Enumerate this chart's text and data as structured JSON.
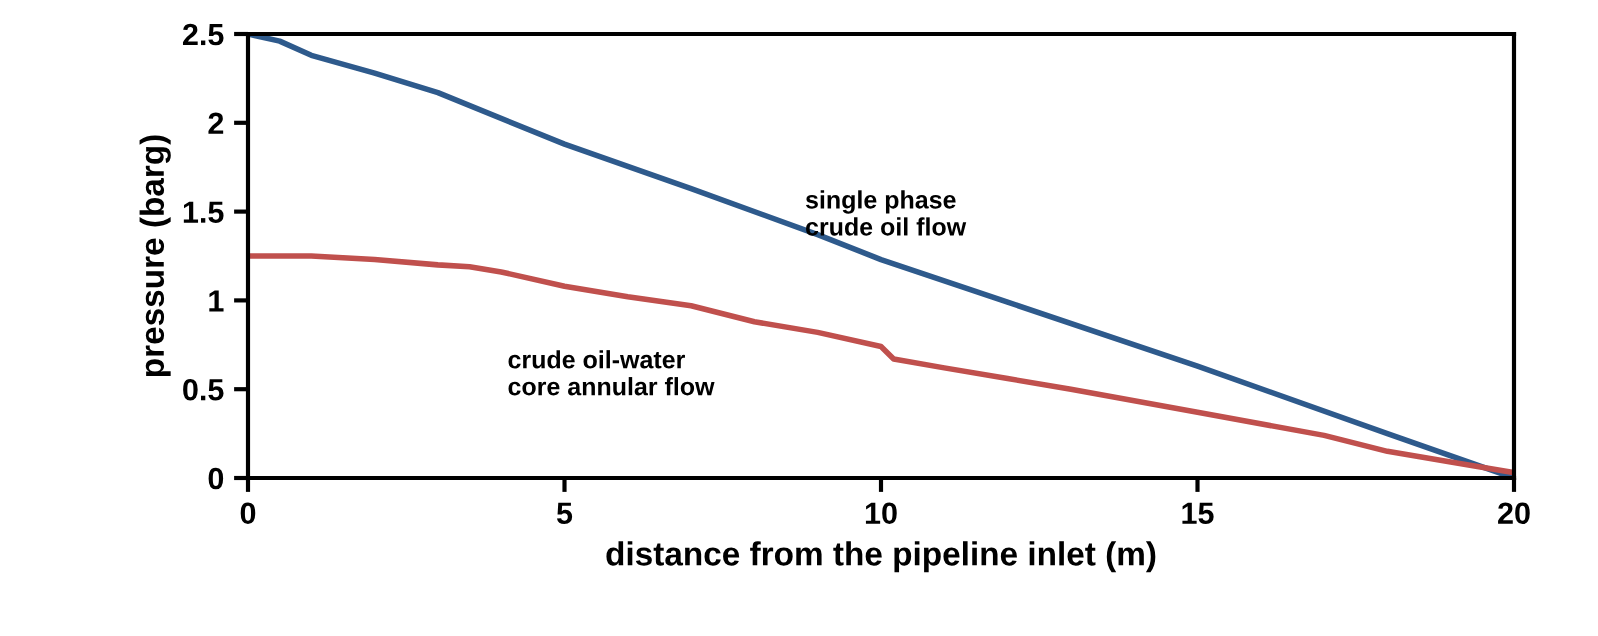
{
  "chart_data": {
    "type": "line",
    "xlabel": "distance from the pipeline inlet (m)",
    "ylabel": "pressure (barg)",
    "xlim": [
      0,
      20
    ],
    "xticks": [
      0,
      5,
      10,
      15,
      20
    ],
    "ylim": [
      0,
      2.5
    ],
    "yticks": [
      0,
      0.5,
      1,
      1.5,
      2,
      2.5
    ],
    "grid": false,
    "legend": false,
    "marker": "none",
    "line_style": "solid",
    "series": [
      {
        "color": "#2e5a8c",
        "x": [
          0,
          0.5,
          1,
          2,
          3,
          5,
          7,
          9,
          10,
          12,
          15,
          18,
          20
        ],
        "values": [
          2.5,
          2.46,
          2.38,
          2.28,
          2.17,
          1.88,
          1.63,
          1.37,
          1.23,
          0.99,
          0.63,
          0.25,
          0.0
        ]
      },
      {
        "color": "#c0504d",
        "x": [
          0,
          1,
          2,
          3,
          3.5,
          4,
          5,
          6,
          7,
          8,
          9,
          10,
          10.2,
          11,
          12,
          13,
          15,
          17,
          18,
          19,
          20
        ],
        "values": [
          1.25,
          1.25,
          1.23,
          1.2,
          1.19,
          1.16,
          1.08,
          1.02,
          0.97,
          0.88,
          0.82,
          0.74,
          0.67,
          0.62,
          0.56,
          0.5,
          0.37,
          0.24,
          0.15,
          0.09,
          0.03
        ]
      }
    ],
    "annotations": [
      "single phase\ncrude oil flow",
      "crude oil-water\ncore annular flow"
    ]
  }
}
